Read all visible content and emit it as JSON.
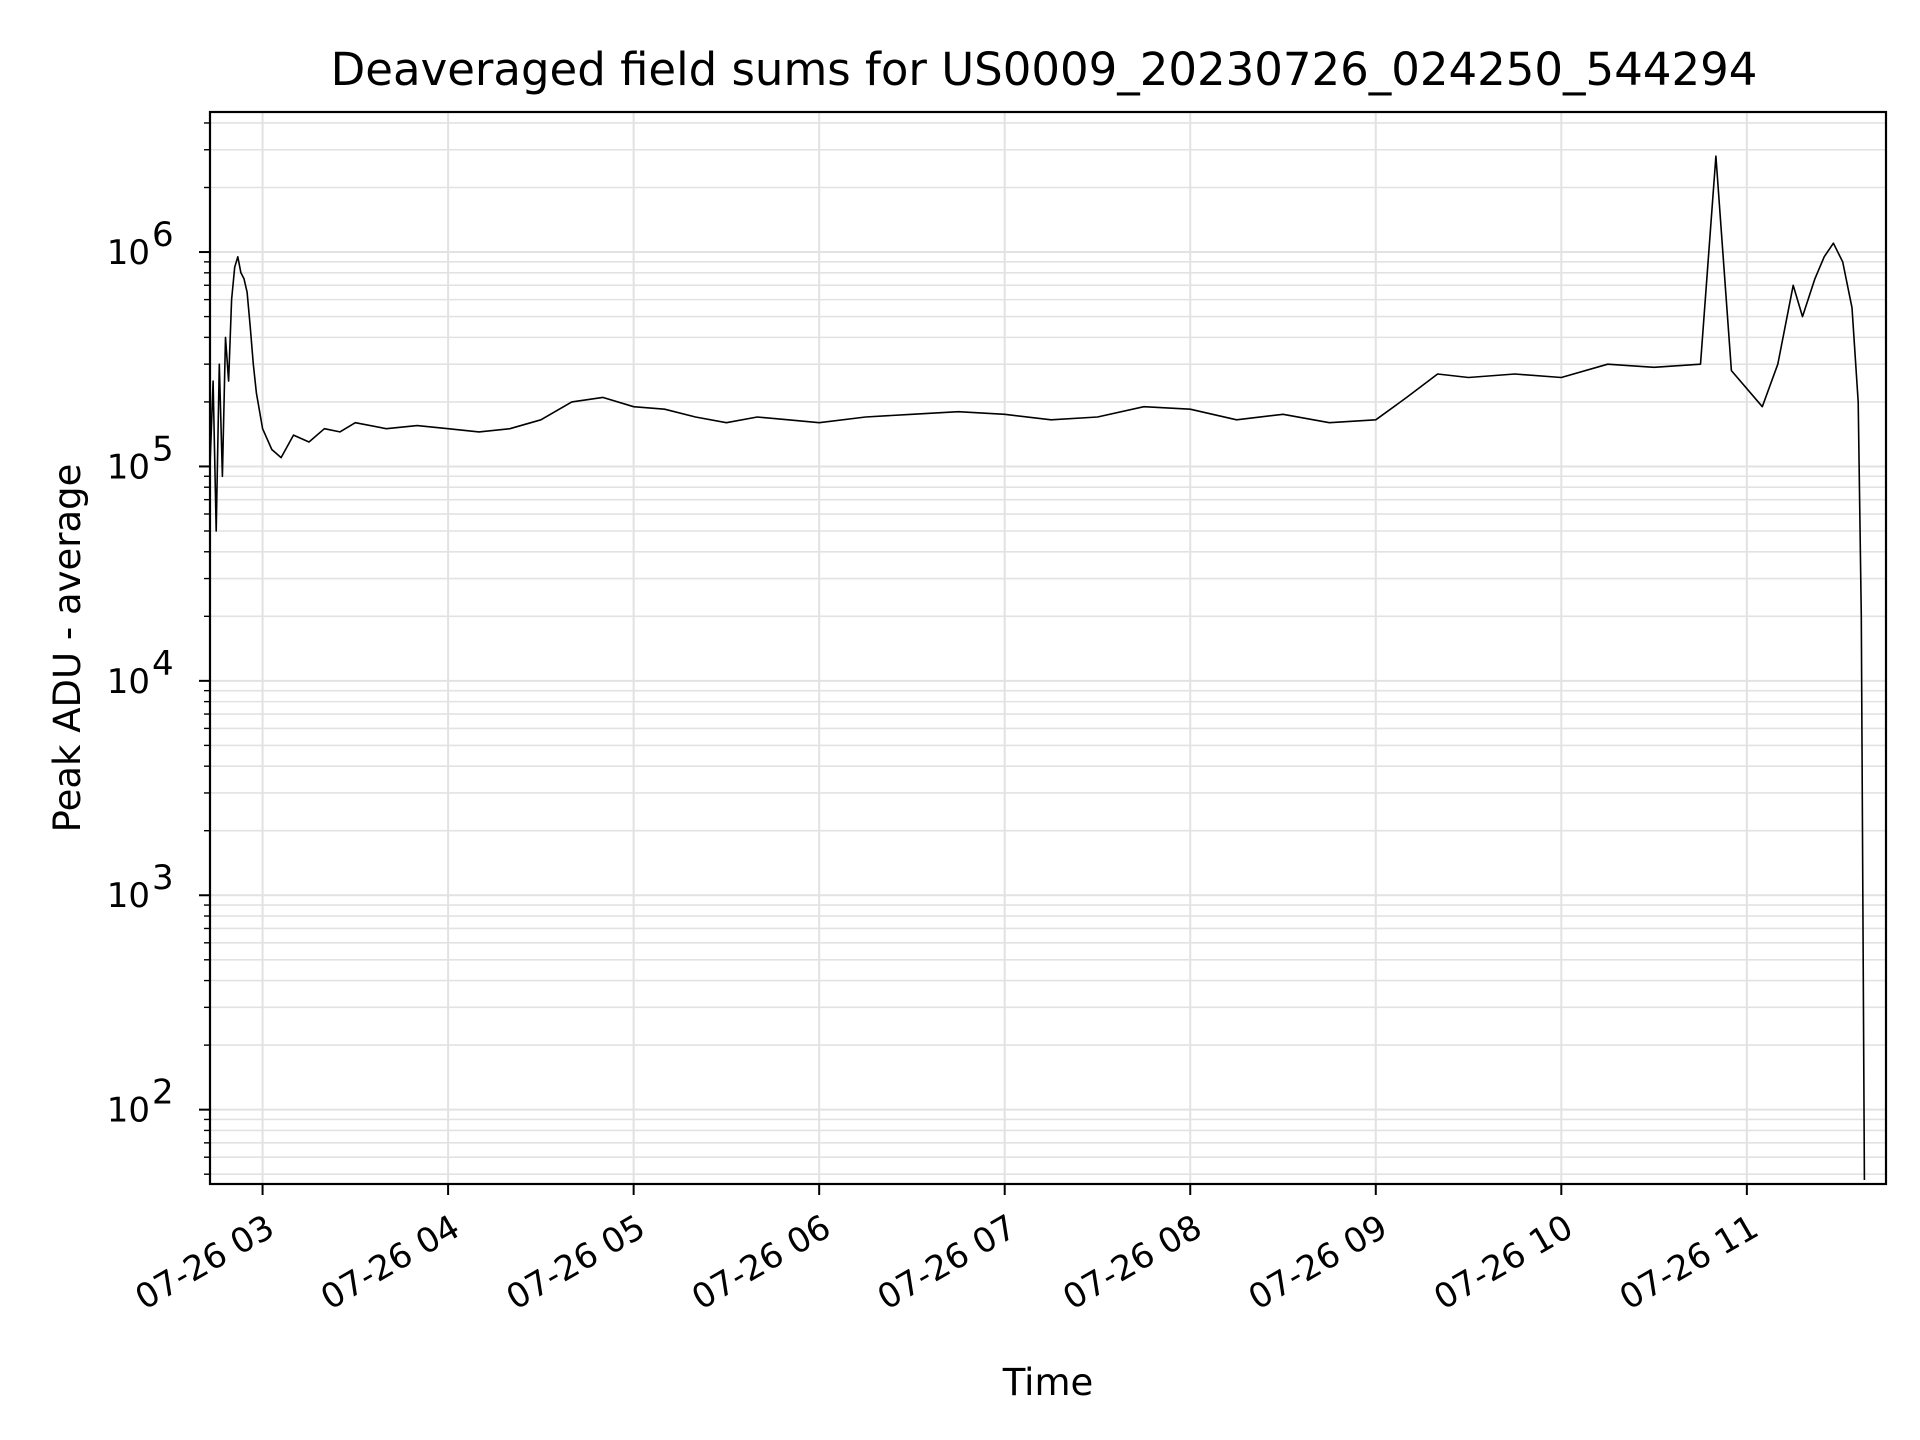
{
  "chart_data": {
    "type": "line",
    "title": "Deaveraged field sums for US0009_20230726_024250_544294",
    "xlabel": "Time",
    "ylabel": "Peak ADU - average",
    "yscale": "log",
    "ylim": [
      45,
      4500000
    ],
    "xlim": [
      "2023-07-26 02:43",
      "2023-07-26 11:45"
    ],
    "grid": true,
    "x_ticks": [
      {
        "value": "2023-07-26 03:00",
        "label": "07-26 03"
      },
      {
        "value": "2023-07-26 04:00",
        "label": "07-26 04"
      },
      {
        "value": "2023-07-26 05:00",
        "label": "07-26 05"
      },
      {
        "value": "2023-07-26 06:00",
        "label": "07-26 06"
      },
      {
        "value": "2023-07-26 07:00",
        "label": "07-26 07"
      },
      {
        "value": "2023-07-26 08:00",
        "label": "07-26 08"
      },
      {
        "value": "2023-07-26 09:00",
        "label": "07-26 09"
      },
      {
        "value": "2023-07-26 10:00",
        "label": "07-26 10"
      },
      {
        "value": "2023-07-26 11:00",
        "label": "07-26 11"
      }
    ],
    "y_ticks": [
      {
        "value": 100,
        "label": "10",
        "exp": "2"
      },
      {
        "value": 1000,
        "label": "10",
        "exp": "3"
      },
      {
        "value": 10000,
        "label": "10",
        "exp": "4"
      },
      {
        "value": 100000,
        "label": "10",
        "exp": "5"
      },
      {
        "value": 1000000,
        "label": "10",
        "exp": "6"
      }
    ],
    "series": [
      {
        "color": "#000000",
        "points": [
          [
            "2023-07-26 02:43",
            100000
          ],
          [
            "2023-07-26 02:44",
            250000
          ],
          [
            "2023-07-26 02:45",
            50000
          ],
          [
            "2023-07-26 02:46",
            300000
          ],
          [
            "2023-07-26 02:47",
            90000
          ],
          [
            "2023-07-26 02:48",
            400000
          ],
          [
            "2023-07-26 02:49",
            250000
          ],
          [
            "2023-07-26 02:50",
            600000
          ],
          [
            "2023-07-26 02:51",
            850000
          ],
          [
            "2023-07-26 02:52",
            950000
          ],
          [
            "2023-07-26 02:53",
            800000
          ],
          [
            "2023-07-26 02:54",
            750000
          ],
          [
            "2023-07-26 02:55",
            650000
          ],
          [
            "2023-07-26 02:56",
            450000
          ],
          [
            "2023-07-26 02:57",
            300000
          ],
          [
            "2023-07-26 02:58",
            220000
          ],
          [
            "2023-07-26 03:00",
            150000
          ],
          [
            "2023-07-26 03:03",
            120000
          ],
          [
            "2023-07-26 03:06",
            110000
          ],
          [
            "2023-07-26 03:10",
            140000
          ],
          [
            "2023-07-26 03:15",
            130000
          ],
          [
            "2023-07-26 03:20",
            150000
          ],
          [
            "2023-07-26 03:25",
            145000
          ],
          [
            "2023-07-26 03:30",
            160000
          ],
          [
            "2023-07-26 03:40",
            150000
          ],
          [
            "2023-07-26 03:50",
            155000
          ],
          [
            "2023-07-26 04:00",
            150000
          ],
          [
            "2023-07-26 04:10",
            145000
          ],
          [
            "2023-07-26 04:20",
            150000
          ],
          [
            "2023-07-26 04:30",
            165000
          ],
          [
            "2023-07-26 04:40",
            200000
          ],
          [
            "2023-07-26 04:50",
            210000
          ],
          [
            "2023-07-26 05:00",
            190000
          ],
          [
            "2023-07-26 05:10",
            185000
          ],
          [
            "2023-07-26 05:20",
            170000
          ],
          [
            "2023-07-26 05:30",
            160000
          ],
          [
            "2023-07-26 05:40",
            170000
          ],
          [
            "2023-07-26 05:50",
            165000
          ],
          [
            "2023-07-26 06:00",
            160000
          ],
          [
            "2023-07-26 06:15",
            170000
          ],
          [
            "2023-07-26 06:30",
            175000
          ],
          [
            "2023-07-26 06:45",
            180000
          ],
          [
            "2023-07-26 07:00",
            175000
          ],
          [
            "2023-07-26 07:15",
            165000
          ],
          [
            "2023-07-26 07:30",
            170000
          ],
          [
            "2023-07-26 07:45",
            190000
          ],
          [
            "2023-07-26 08:00",
            185000
          ],
          [
            "2023-07-26 08:15",
            165000
          ],
          [
            "2023-07-26 08:30",
            175000
          ],
          [
            "2023-07-26 08:45",
            160000
          ],
          [
            "2023-07-26 09:00",
            165000
          ],
          [
            "2023-07-26 09:10",
            210000
          ],
          [
            "2023-07-26 09:20",
            270000
          ],
          [
            "2023-07-26 09:30",
            260000
          ],
          [
            "2023-07-26 09:45",
            270000
          ],
          [
            "2023-07-26 10:00",
            260000
          ],
          [
            "2023-07-26 10:15",
            300000
          ],
          [
            "2023-07-26 10:30",
            290000
          ],
          [
            "2023-07-26 10:45",
            300000
          ],
          [
            "2023-07-26 10:50",
            2800000
          ],
          [
            "2023-07-26 10:55",
            280000
          ],
          [
            "2023-07-26 11:05",
            190000
          ],
          [
            "2023-07-26 11:10",
            300000
          ],
          [
            "2023-07-26 11:15",
            700000
          ],
          [
            "2023-07-26 11:18",
            500000
          ],
          [
            "2023-07-26 11:22",
            750000
          ],
          [
            "2023-07-26 11:25",
            950000
          ],
          [
            "2023-07-26 11:28",
            1100000
          ],
          [
            "2023-07-26 11:31",
            900000
          ],
          [
            "2023-07-26 11:34",
            550000
          ],
          [
            "2023-07-26 11:36",
            200000
          ],
          [
            "2023-07-26 11:37",
            20000
          ],
          [
            "2023-07-26 11:38",
            47
          ]
        ]
      }
    ]
  }
}
